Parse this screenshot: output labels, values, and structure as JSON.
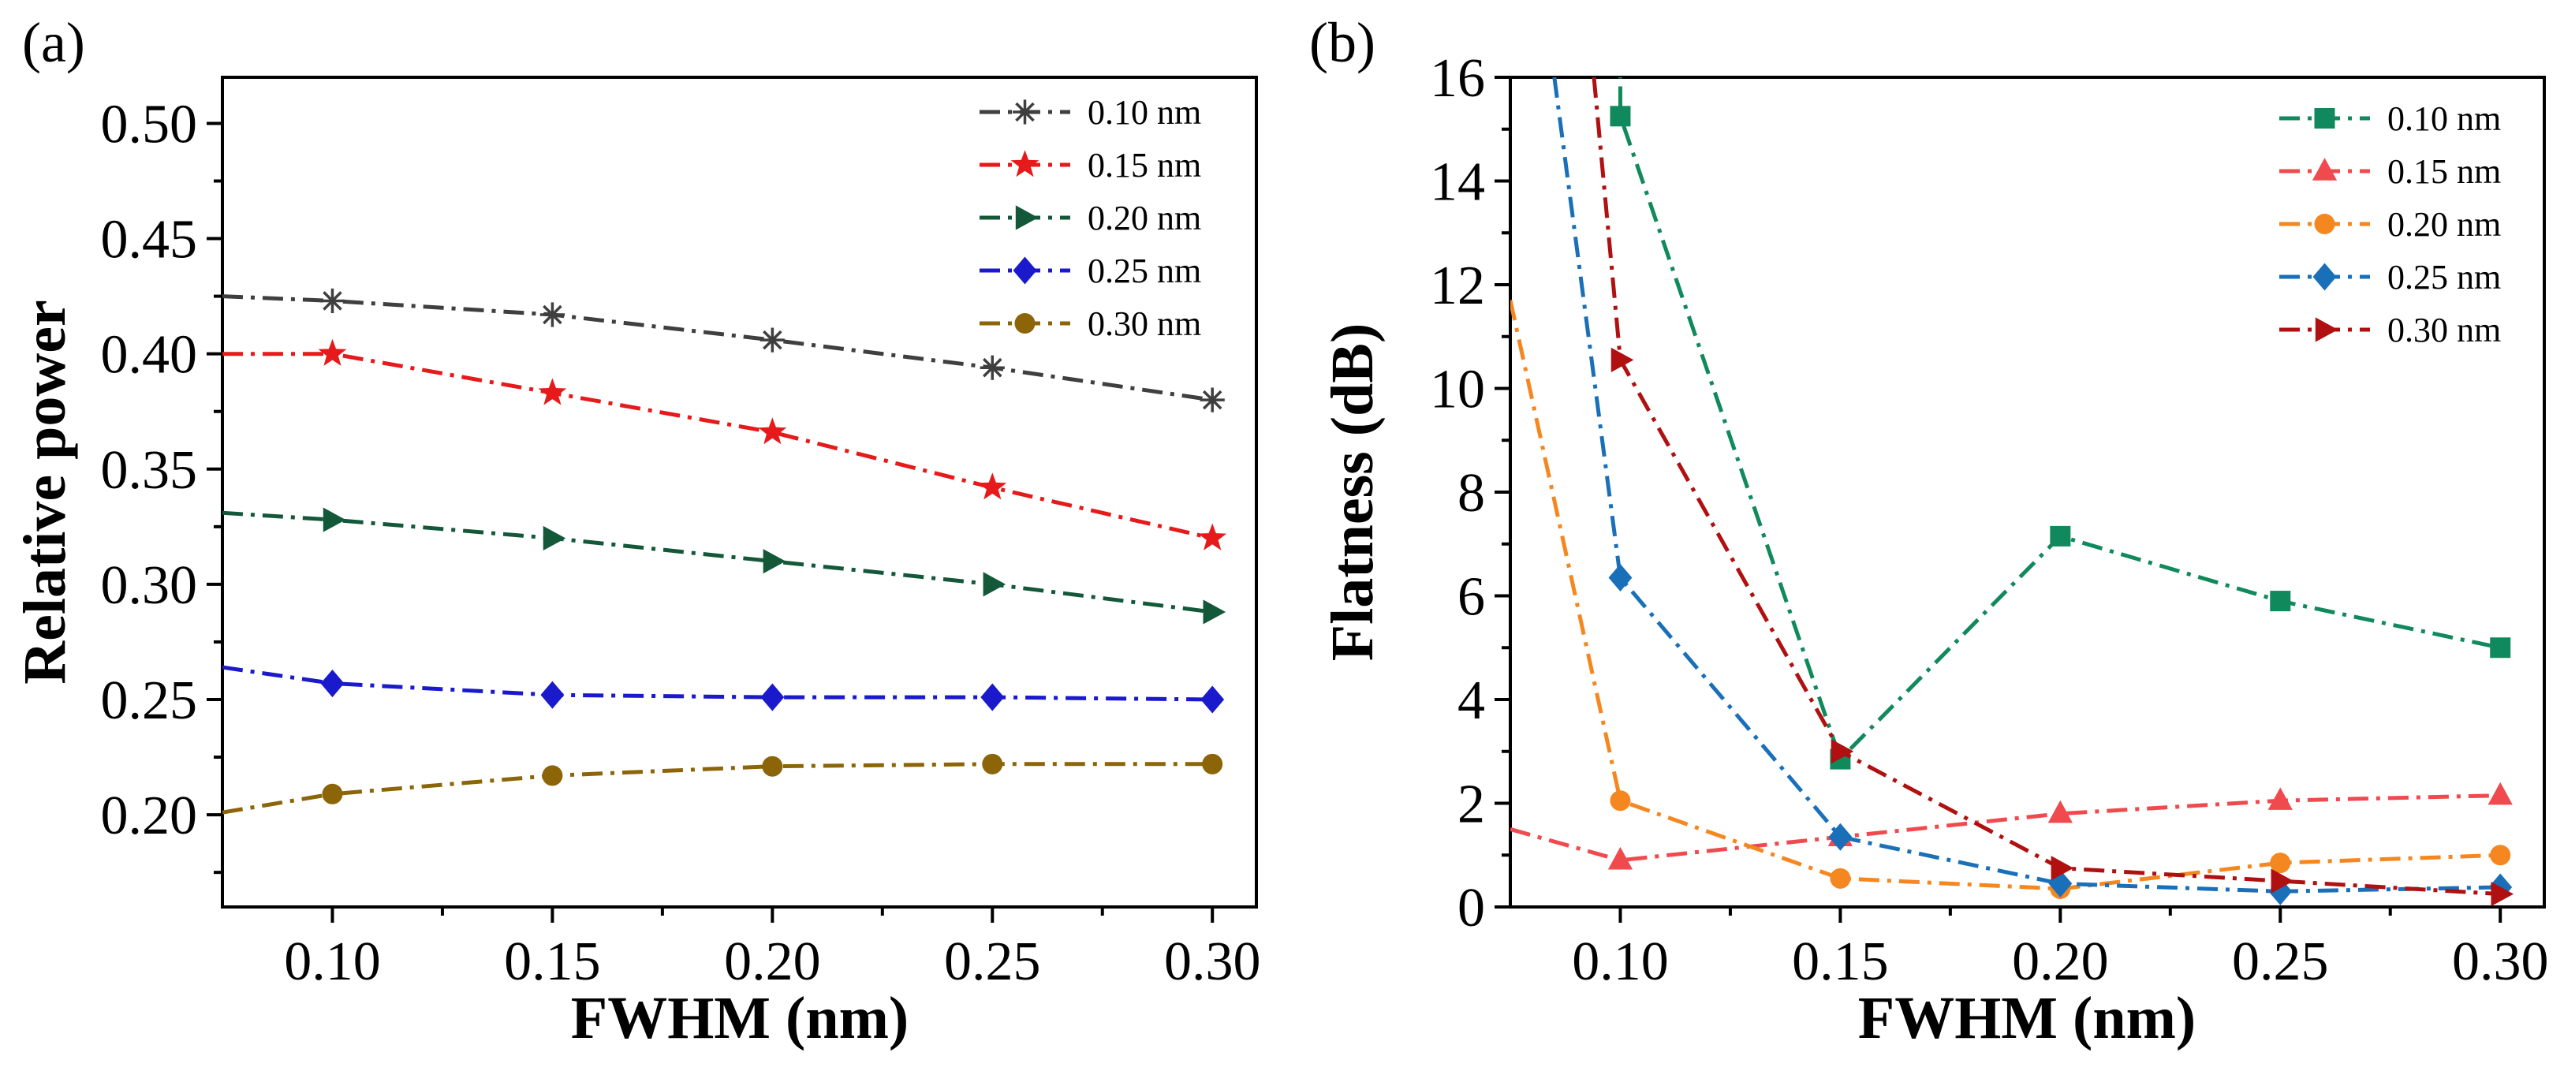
{
  "chart_data": [
    {
      "type": "line",
      "panel_label": "(a)",
      "xlabel": "FWHM (nm)",
      "ylabel": "Relative power",
      "xlim": [
        0.075,
        0.31
      ],
      "ylim": [
        0.16,
        0.52
      ],
      "xticks": [
        0.1,
        0.15,
        0.2,
        0.25,
        0.3
      ],
      "xtick_labels": [
        "0.10",
        "0.15",
        "0.20",
        "0.25",
        "0.30"
      ],
      "yticks": [
        0.2,
        0.25,
        0.3,
        0.35,
        0.4,
        0.45,
        0.5
      ],
      "ytick_labels": [
        "0.20",
        "0.25",
        "0.30",
        "0.35",
        "0.40",
        "0.45",
        "0.50"
      ],
      "legend_position": "top-right",
      "grid": false,
      "series": [
        {
          "name": "0.10 nm",
          "color": "#3f3f3f",
          "marker": "asterisk",
          "x": [
            0.075,
            0.1,
            0.15,
            0.2,
            0.25,
            0.3
          ],
          "y": [
            0.425,
            0.423,
            0.417,
            0.406,
            0.394,
            0.38
          ]
        },
        {
          "name": "0.15 nm",
          "color": "#e61a1a",
          "marker": "star",
          "x": [
            0.075,
            0.1,
            0.15,
            0.2,
            0.25,
            0.3
          ],
          "y": [
            0.4,
            0.4,
            0.383,
            0.366,
            0.342,
            0.32
          ]
        },
        {
          "name": "0.20 nm",
          "color": "#14583a",
          "marker": "triangle-right",
          "x": [
            0.075,
            0.1,
            0.15,
            0.2,
            0.25,
            0.3
          ],
          "y": [
            0.331,
            0.328,
            0.32,
            0.31,
            0.3,
            0.288
          ]
        },
        {
          "name": "0.25 nm",
          "color": "#1a1acc",
          "marker": "diamond",
          "x": [
            0.075,
            0.1,
            0.15,
            0.2,
            0.25,
            0.3
          ],
          "y": [
            0.264,
            0.257,
            0.252,
            0.251,
            0.251,
            0.25
          ]
        },
        {
          "name": "0.30 nm",
          "color": "#8b6508",
          "marker": "circle",
          "x": [
            0.075,
            0.1,
            0.15,
            0.2,
            0.25,
            0.3
          ],
          "y": [
            0.201,
            0.209,
            0.217,
            0.221,
            0.222,
            0.222
          ]
        }
      ]
    },
    {
      "type": "line",
      "panel_label": "(b)",
      "xlabel": "FWHM (nm)",
      "ylabel": "Flatness (dB)",
      "xlim": [
        0.075,
        0.31
      ],
      "ylim": [
        0,
        16
      ],
      "xticks": [
        0.1,
        0.15,
        0.2,
        0.25,
        0.3
      ],
      "xtick_labels": [
        "0.10",
        "0.15",
        "0.20",
        "0.25",
        "0.30"
      ],
      "yticks": [
        0,
        2,
        4,
        6,
        8,
        10,
        12,
        14,
        16
      ],
      "ytick_labels": [
        "0",
        "2",
        "4",
        "6",
        "8",
        "10",
        "12",
        "14",
        "16"
      ],
      "legend_position": "top-right",
      "grid": false,
      "series": [
        {
          "name": "0.10 nm",
          "color": "#108a5c",
          "marker": "square",
          "x": [
            0.1,
            0.15,
            0.2,
            0.25,
            0.3
          ],
          "y": [
            15.25,
            2.85,
            7.15,
            5.9,
            5.0
          ],
          "extend_from": [
            0.1,
            16.6
          ]
        },
        {
          "name": "0.15 nm",
          "color": "#f0494e",
          "marker": "triangle-up",
          "x": [
            0.075,
            0.1,
            0.15,
            0.2,
            0.25,
            0.3
          ],
          "y": [
            1.5,
            0.9,
            1.35,
            1.8,
            2.05,
            2.15
          ]
        },
        {
          "name": "0.20 nm",
          "color": "#f58720",
          "marker": "circle",
          "x": [
            0.075,
            0.1,
            0.15,
            0.2,
            0.25,
            0.3
          ],
          "y": [
            11.7,
            2.05,
            0.55,
            0.35,
            0.85,
            1.0
          ]
        },
        {
          "name": "0.25 nm",
          "color": "#1a70b8",
          "marker": "diamond",
          "x": [
            0.085,
            0.1,
            0.15,
            0.2,
            0.25,
            0.3
          ],
          "y": [
            16.0,
            6.35,
            1.35,
            0.45,
            0.3,
            0.38
          ]
        },
        {
          "name": "0.30 nm",
          "color": "#b01010",
          "marker": "triangle-right",
          "x": [
            0.094,
            0.1,
            0.15,
            0.2,
            0.25,
            0.3
          ],
          "y": [
            16.0,
            10.55,
            3.0,
            0.75,
            0.5,
            0.25
          ]
        }
      ]
    }
  ]
}
